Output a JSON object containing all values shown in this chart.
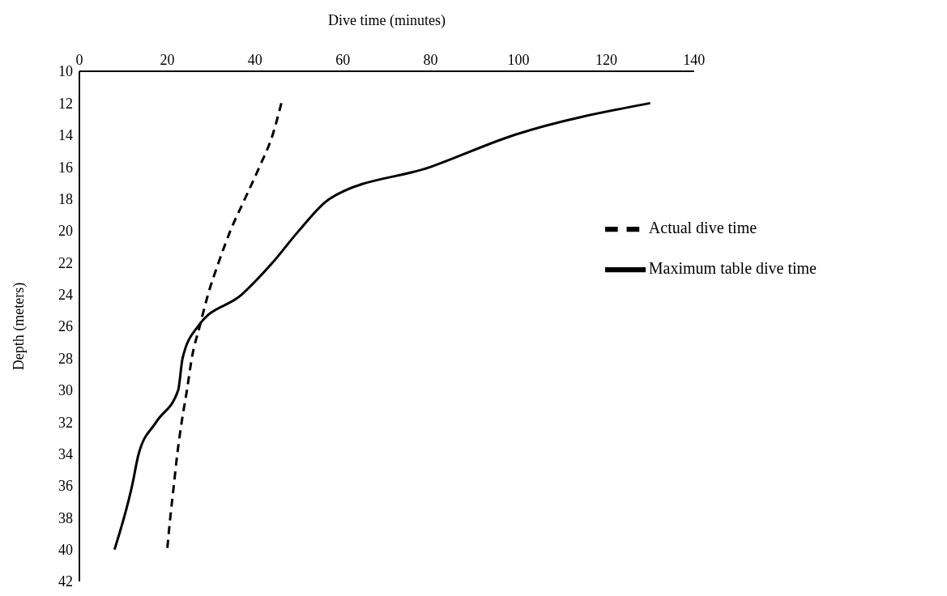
{
  "chart_data": {
    "type": "line",
    "xlabel": "Dive time (minutes)",
    "ylabel": "Depth (meters)",
    "xlim": [
      0,
      140
    ],
    "xticks": [
      0,
      20,
      40,
      60,
      80,
      100,
      120,
      140
    ],
    "ylim": [
      42,
      10
    ],
    "yticks": [
      10,
      12,
      14,
      16,
      18,
      20,
      22,
      24,
      26,
      28,
      30,
      32,
      34,
      36,
      38,
      40,
      42
    ],
    "grid": false,
    "legend": "right",
    "marker": "none",
    "series": [
      {
        "name": "Maximum table dive time",
        "color": "#000000",
        "line_style": "solid",
        "x": [
          130,
          99,
          80,
          57,
          50,
          44,
          37,
          27,
          23.5,
          22.5,
          17.5,
          13.5,
          12,
          8
        ],
        "values": [
          12,
          14,
          16,
          18,
          20,
          22,
          24,
          26,
          28,
          30,
          32,
          34,
          36,
          40
        ]
      },
      {
        "name": "Actual dive time",
        "color": "#000000",
        "line_style": "dashed",
        "x": [
          46,
          44,
          41,
          37.7,
          34.4,
          31.7,
          29.3,
          27.4,
          25.6,
          24.5,
          23.3,
          22.3,
          21.5,
          20.7,
          20
        ],
        "values": [
          12,
          14,
          16,
          18,
          20,
          22,
          24,
          26,
          28,
          30,
          32,
          34,
          36,
          38,
          40
        ]
      }
    ]
  }
}
